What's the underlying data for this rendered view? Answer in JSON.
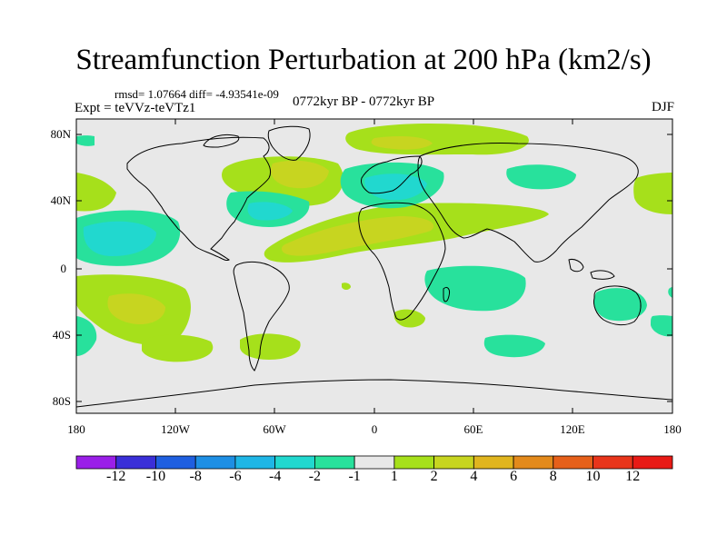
{
  "title": "Streamfunction Perturbation at 200 hPa (km2/s)",
  "stats": "rmsd= 1.07664 diff= -4.93541e-09",
  "experiment": "Expt = teVVz-teVTz1",
  "period": "0772kyr BP - 0772kyr BP",
  "season": "DJF",
  "lat_labels": [
    "80N",
    "40N",
    "0",
    "40S",
    "80S"
  ],
  "lon_labels": [
    "180",
    "120W",
    "60W",
    "0",
    "60E",
    "120E",
    "180"
  ],
  "colorbar_labels": [
    "-12",
    "-10",
    "-8",
    "-6",
    "-4",
    "-2",
    "-1",
    "1",
    "2",
    "4",
    "6",
    "8",
    "10",
    "12"
  ],
  "colorbar_colors": [
    "#9a1fe8",
    "#3a2fd8",
    "#1f5fe0",
    "#1e8fe4",
    "#1fb6e6",
    "#21d8cf",
    "#28e19c",
    "#e8e8e8",
    "#a6e01b",
    "#c7d520",
    "#e0b51f",
    "#e38a1c",
    "#e6601a",
    "#e8351b",
    "#e81a16"
  ],
  "map_background": "#e8e8e8"
}
